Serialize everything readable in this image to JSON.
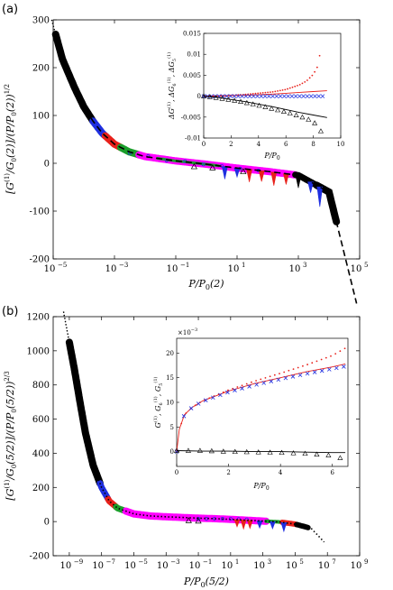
{
  "panels": [
    {
      "label": "(a)",
      "xlabel": "P/P_0(2)",
      "ylabel": "[G^(1)/G_0(2)]/(P/P_0(2))^1/2",
      "ylim": [
        -200,
        300
      ],
      "yticks": [
        "300",
        "200",
        "100",
        "0",
        "-100",
        "-200"
      ],
      "yticks_values": [
        300,
        200,
        100,
        0,
        -100,
        -200
      ],
      "xticks_exp": [
        "-5",
        "-3",
        "-1",
        "1",
        "3",
        "5"
      ],
      "xlim_log": [
        -5,
        5
      ],
      "inset": {
        "xlabel": "P/P_0",
        "ylabel": "ΔG^(1), ΔG_6^(1), ΔG_5^(1)",
        "xticks": [
          "0",
          "2",
          "4",
          "6",
          "8",
          "10"
        ],
        "yticks": [
          "0.015",
          "0.01",
          "0.005",
          "0",
          "-0.005",
          "-0.01"
        ],
        "xlim": [
          0,
          10
        ],
        "ylim": [
          -0.01,
          0.015
        ]
      }
    },
    {
      "label": "(b)",
      "xlabel": "P/P_0(5/2)",
      "ylabel": "[G^(1)/G_0(5/2)]/(P/P_0(5/2))^2/3",
      "ylim": [
        -200,
        1200
      ],
      "yticks": [
        "1200",
        "1000",
        "800",
        "600",
        "400",
        "200",
        "0",
        "-200"
      ],
      "yticks_values": [
        1200,
        1000,
        800,
        600,
        400,
        200,
        0,
        -200
      ],
      "xticks_exp": [
        "-9",
        "-7",
        "-5",
        "-3",
        "-1",
        "1",
        "3",
        "5",
        "7",
        "9"
      ],
      "xlim_log": [
        -10,
        9
      ],
      "inset": {
        "xlabel": "P/P_0",
        "ylabel": "G^(1), G_6^(1), G_5^(1)",
        "multiplier": "×10^-3",
        "xticks": [
          "0",
          "2",
          "4",
          "6"
        ],
        "yticks": [
          "20",
          "15",
          "10",
          "5",
          "0"
        ],
        "xlim": [
          0,
          6.6
        ],
        "ylim": [
          -3,
          23
        ]
      }
    }
  ],
  "chart_data": [
    {
      "type": "scatter",
      "title": "",
      "x_scale": "log",
      "xlim": [
        1e-05,
        100000.0
      ],
      "ylim": [
        -200,
        300
      ],
      "grid": false,
      "colors": {
        "black": "#000000",
        "blue": "#1f2fe0",
        "red": "#e8201a",
        "green": "#1a9e2a",
        "magenta": "#ff00ff",
        "fit": "#000000"
      },
      "series": [
        {
          "x": [
            1.2e-05,
            2e-05,
            5e-05,
            0.0001,
            0.0002,
            0.0004,
            0.001,
            0.003,
            0.01,
            0.1,
            1,
            10,
            100,
            1000,
            10000.0,
            20000.0
          ],
          "y": [
            270,
            218,
            158,
            118,
            88,
            63,
            40,
            24,
            14,
            5,
            -2,
            -10,
            -17,
            -25,
            -60,
            -138
          ]
        }
      ]
    },
    {
      "type": "line",
      "title": "",
      "xlim": [
        0,
        10
      ],
      "ylim": [
        -0.01,
        0.015
      ],
      "grid": false,
      "colors": {
        "black": "#000000",
        "blue": "#1f2fe0",
        "red": "#e8201a"
      },
      "series": [
        {
          "x": [
            0,
            1,
            2,
            3,
            4,
            5,
            6,
            7,
            7.5,
            8,
            8.3,
            8.6
          ],
          "y": [
            0,
            5e-05,
            0.0002,
            0.0004,
            0.0007,
            0.001,
            0.0016,
            0.0027,
            0.0036,
            0.0052,
            0.007,
            0.012
          ]
        },
        {
          "x": [
            0,
            1,
            2,
            3,
            4,
            5,
            6,
            7,
            8,
            9
          ],
          "y": [
            0,
            3e-05,
            0.0001,
            0.0002,
            0.00035,
            0.0005,
            0.0007,
            0.0009,
            0.0011,
            0.0013
          ]
        },
        {
          "x": [
            0,
            1,
            2,
            3,
            4,
            5,
            6,
            7,
            8,
            8.7
          ],
          "y": [
            0,
            0,
            0,
            0,
            0,
            0,
            0,
            0,
            0,
            0
          ]
        },
        {
          "x": [
            0,
            1,
            2,
            3,
            4,
            5,
            6,
            7,
            8,
            8.7
          ],
          "y": [
            0,
            -0.0004,
            -0.0009,
            -0.0015,
            -0.0022,
            -0.003,
            -0.0038,
            -0.0048,
            -0.006,
            -0.009
          ]
        },
        {
          "x": [
            0,
            1,
            2,
            3,
            4,
            5,
            6,
            7,
            8,
            9
          ],
          "y": [
            0,
            -0.0003,
            -0.0008,
            -0.0013,
            -0.0019,
            -0.0025,
            -0.0032,
            -0.0039,
            -0.0045,
            -0.0051
          ]
        }
      ]
    },
    {
      "type": "scatter",
      "title": "",
      "x_scale": "log",
      "xlim": [
        1e-10,
        1000000000.0
      ],
      "ylim": [
        -200,
        1200
      ],
      "grid": false,
      "colors": {
        "black": "#000000",
        "blue": "#1f2fe0",
        "red": "#e8201a",
        "green": "#1a9e2a",
        "magenta": "#ff00ff"
      },
      "series": [
        {
          "x": [
            1e-09,
            2e-09,
            5e-09,
            1e-08,
            3e-08,
            1e-07,
            3e-07,
            1e-06,
            1e-05,
            0.0001,
            0.001,
            0.01,
            0.1,
            1,
            10,
            100,
            1000.0,
            10000.0,
            100000.0,
            1000000.0,
            5000000.0
          ],
          "y": [
            1050,
            900,
            680,
            520,
            330,
            200,
            120,
            78,
            45,
            33,
            28,
            24,
            20,
            17,
            13,
            8,
            3,
            -2,
            -15,
            -40,
            -110
          ]
        }
      ]
    },
    {
      "type": "line",
      "title": "",
      "xlim": [
        0,
        6.6
      ],
      "ylim": [
        -3,
        23
      ],
      "grid": false,
      "colors": {
        "black": "#000000",
        "blue": "#1f2fe0",
        "red": "#e8201a"
      },
      "series": [
        {
          "x": [
            0,
            0.1,
            0.3,
            0.6,
            1,
            2,
            3,
            4,
            5,
            6,
            6.5
          ],
          "y": [
            0,
            4.5,
            7.5,
            9,
            10.3,
            12.5,
            14.3,
            15.9,
            17.6,
            19.5,
            21
          ]
        },
        {
          "x": [
            0,
            0.1,
            0.3,
            0.6,
            1,
            2,
            3,
            4,
            5,
            6,
            6.5
          ],
          "y": [
            0,
            4.5,
            7.5,
            9,
            10.3,
            12.3,
            13.8,
            15,
            16.2,
            17.2,
            17.8
          ]
        },
        {
          "x": [
            0,
            0.1,
            0.3,
            0.6,
            1,
            2,
            3,
            4,
            5,
            6,
            6.5
          ],
          "y": [
            0,
            4.5,
            7.5,
            9,
            10.2,
            12.1,
            13.5,
            14.7,
            15.8,
            16.8,
            17.3
          ]
        },
        {
          "x": [
            0,
            1,
            2,
            3,
            4,
            5,
            6,
            6.5
          ],
          "y": [
            0.2,
            0.2,
            0,
            -0.1,
            -0.2,
            -0.4,
            -0.8,
            -1.6
          ]
        },
        {
          "x": [
            0,
            1,
            2,
            3,
            4,
            5,
            6,
            6.5
          ],
          "y": [
            0.2,
            0.1,
            0.1,
            0,
            0,
            -0.1,
            -0.2,
            -0.2
          ]
        }
      ]
    }
  ]
}
